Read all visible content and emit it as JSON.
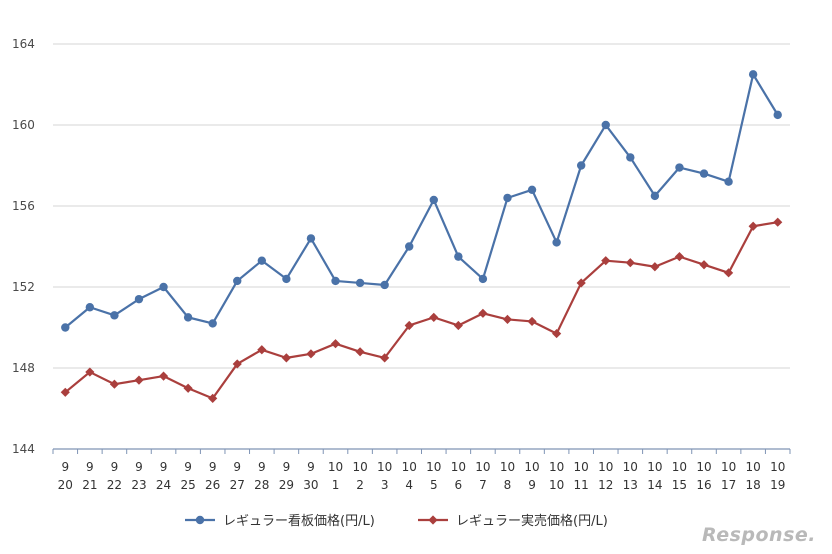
{
  "chart_data": {
    "type": "line",
    "x_row1": [
      "9",
      "9",
      "9",
      "9",
      "9",
      "9",
      "9",
      "9",
      "9",
      "9",
      "9",
      "10",
      "10",
      "10",
      "10",
      "10",
      "10",
      "10",
      "10",
      "10",
      "10",
      "10",
      "10",
      "10",
      "10",
      "10",
      "10",
      "10",
      "10",
      "10"
    ],
    "x_row2": [
      "20",
      "21",
      "22",
      "23",
      "24",
      "25",
      "26",
      "27",
      "28",
      "29",
      "30",
      "1",
      "2",
      "3",
      "4",
      "5",
      "6",
      "7",
      "8",
      "9",
      "10",
      "11",
      "12",
      "13",
      "14",
      "15",
      "16",
      "17",
      "18",
      "19"
    ],
    "series": [
      {
        "name": "レギュラー看板価格(円/L)",
        "color": "#4a72a8",
        "marker": "circle",
        "values": [
          150.0,
          151.0,
          150.6,
          151.4,
          152.0,
          150.5,
          150.2,
          152.3,
          153.3,
          152.4,
          154.4,
          152.3,
          152.2,
          152.1,
          154.0,
          156.3,
          153.5,
          152.4,
          156.4,
          156.8,
          154.2,
          158.0,
          160.0,
          158.4,
          156.5,
          157.9,
          157.6,
          157.2,
          162.5,
          160.5
        ]
      },
      {
        "name": "レギュラー実売価格(円/L)",
        "color": "#aa3f3d",
        "marker": "diamond",
        "values": [
          146.8,
          147.8,
          147.2,
          147.4,
          147.6,
          147.0,
          146.5,
          148.2,
          148.9,
          148.5,
          148.7,
          149.2,
          148.8,
          148.5,
          150.1,
          150.5,
          150.1,
          150.7,
          150.4,
          150.3,
          149.7,
          152.2,
          153.3,
          153.2,
          153.0,
          153.5,
          153.1,
          152.7,
          155.0,
          155.2
        ]
      }
    ],
    "y_ticks": [
      "144",
      "148",
      "152",
      "156",
      "160",
      "164"
    ],
    "ylim": [
      144,
      164
    ],
    "grid": true,
    "legend_position": "bottom"
  },
  "watermark": "Response."
}
